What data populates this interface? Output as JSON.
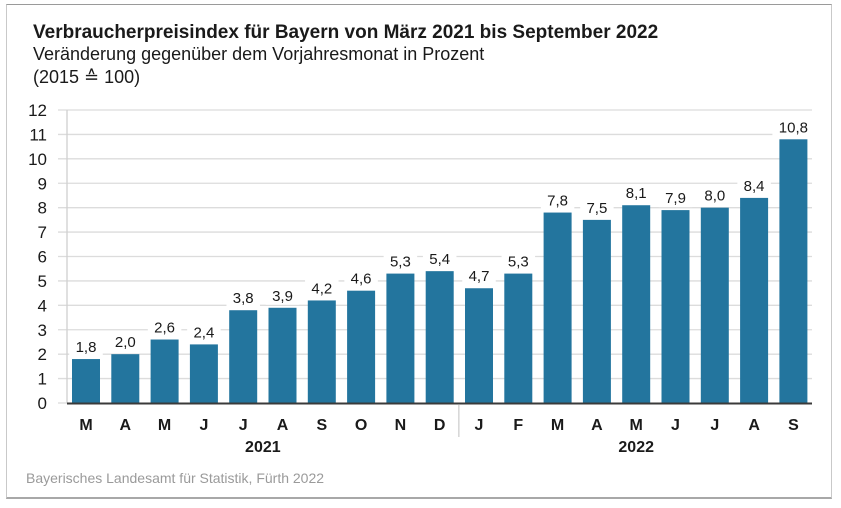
{
  "chart_data": {
    "type": "bar",
    "title": "Verbraucherpreisindex für Bayern von März 2021 bis September 2022",
    "subtitle": "Veränderung gegenüber dem Vorjahresmonat in Prozent",
    "subtitle2": "(2015 ≙ 100)",
    "source": "Bayerisches Landesamt für Statistik, Fürth 2022",
    "xlabel": "",
    "ylabel": "",
    "ylim": [
      0,
      12
    ],
    "yticks": [
      0,
      1,
      2,
      3,
      4,
      5,
      6,
      7,
      8,
      9,
      10,
      11,
      12
    ],
    "grid": true,
    "categories": [
      "M",
      "A",
      "M",
      "J",
      "J",
      "A",
      "S",
      "O",
      "N",
      "D",
      "J",
      "F",
      "M",
      "A",
      "M",
      "J",
      "J",
      "A",
      "S"
    ],
    "values": [
      1.8,
      2.0,
      2.6,
      2.4,
      3.8,
      3.9,
      4.2,
      4.6,
      5.3,
      5.4,
      4.7,
      5.3,
      7.8,
      7.5,
      8.1,
      7.9,
      8.0,
      8.4,
      10.8
    ],
    "value_labels": [
      "1,8",
      "2,0",
      "2,6",
      "2,4",
      "3,8",
      "3,9",
      "4,2",
      "4,6",
      "5,3",
      "5,4",
      "4,7",
      "5,3",
      "7,8",
      "7,5",
      "8,1",
      "7,9",
      "8,0",
      "8,4",
      "10,8"
    ],
    "groups": [
      {
        "label": "2021",
        "start_index": 0,
        "end_index": 9
      },
      {
        "label": "2022",
        "start_index": 10,
        "end_index": 18
      }
    ],
    "bar_color": "#23759e",
    "legend": "none"
  }
}
